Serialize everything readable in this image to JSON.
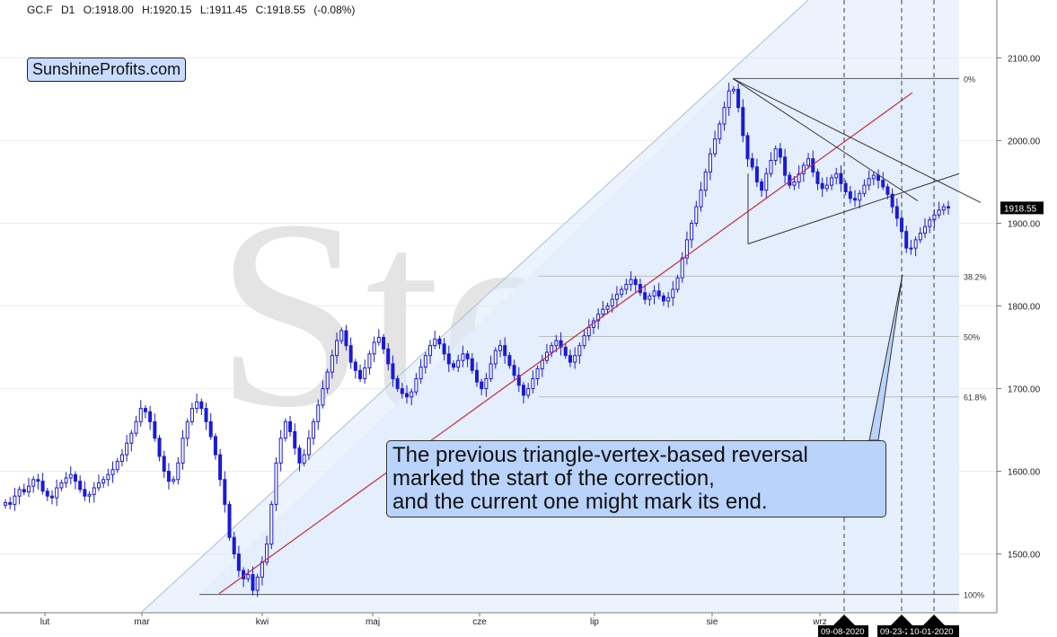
{
  "header": {
    "symbol": "GC.F",
    "interval": "D1",
    "open": "O:1918.00",
    "high": "H:1920.15",
    "low": "L:1911.45",
    "close": "C:1918.55",
    "change": "(-0.08%)"
  },
  "watermark": "Stooq",
  "logo": "SunshineProfits.com",
  "annotation": {
    "lines": [
      "The previous triangle-vertex-based reversal",
      "marked the start of the correction,",
      "and the current one might mark its end."
    ]
  },
  "chart_data": {
    "type": "candlestick",
    "ylim": [
      1430,
      2170
    ],
    "yticks": [
      {
        "value": 2100,
        "label": "2100.00"
      },
      {
        "value": 2000,
        "label": "2000.00"
      },
      {
        "value": 1900,
        "label": "1900.00"
      },
      {
        "value": 1800,
        "label": "1800.00"
      },
      {
        "value": 1700,
        "label": "1700.00"
      },
      {
        "value": 1600,
        "label": "1600.00"
      },
      {
        "value": 1500,
        "label": "1500.00"
      }
    ],
    "xticks": [
      "lut",
      "mar",
      "kwi",
      "maj",
      "cze",
      "lip",
      "sie",
      "wrz"
    ],
    "last_price": {
      "value": 1918.55,
      "label": "1918.55"
    },
    "fib_levels": [
      {
        "label": "0%",
        "value": 2075
      },
      {
        "label": "38.2%",
        "value": 1836
      },
      {
        "label": "50%",
        "value": 1763
      },
      {
        "label": "61.8%",
        "value": 1690
      },
      {
        "label": "100%",
        "value": 1451
      }
    ],
    "date_markers": [
      "09-08-2020",
      "09-23-2",
      "10-01-2020"
    ],
    "series": {
      "close": [
        1562,
        1560,
        1570,
        1578,
        1575,
        1582,
        1590,
        1588,
        1576,
        1570,
        1568,
        1580,
        1586,
        1592,
        1596,
        1588,
        1578,
        1570,
        1572,
        1580,
        1586,
        1590,
        1596,
        1602,
        1612,
        1620,
        1634,
        1646,
        1660,
        1676,
        1672,
        1660,
        1640,
        1618,
        1600,
        1588,
        1590,
        1610,
        1640,
        1660,
        1676,
        1684,
        1676,
        1660,
        1642,
        1620,
        1590,
        1560,
        1520,
        1500,
        1480,
        1470,
        1475,
        1456,
        1472,
        1490,
        1512,
        1560,
        1610,
        1640,
        1660,
        1648,
        1628,
        1610,
        1620,
        1640,
        1660,
        1680,
        1700,
        1720,
        1740,
        1758,
        1770,
        1752,
        1732,
        1722,
        1712,
        1725,
        1742,
        1756,
        1762,
        1748,
        1730,
        1712,
        1700,
        1694,
        1690,
        1696,
        1712,
        1726,
        1740,
        1752,
        1760,
        1754,
        1742,
        1730,
        1726,
        1734,
        1742,
        1736,
        1722,
        1708,
        1700,
        1712,
        1730,
        1746,
        1752,
        1740,
        1728,
        1716,
        1704,
        1692,
        1700,
        1712,
        1724,
        1734,
        1744,
        1752,
        1758,
        1750,
        1740,
        1732,
        1740,
        1752,
        1764,
        1774,
        1782,
        1790,
        1796,
        1800,
        1808,
        1814,
        1820,
        1826,
        1832,
        1826,
        1816,
        1808,
        1812,
        1818,
        1812,
        1806,
        1810,
        1820,
        1834,
        1858,
        1880,
        1900,
        1920,
        1940,
        1962,
        1984,
        2002,
        2020,
        2040,
        2060,
        2062,
        2040,
        2006,
        1978,
        1968,
        1950,
        1940,
        1960,
        1976,
        1990,
        1980,
        1958,
        1946,
        1950,
        1960,
        1970,
        1978,
        1962,
        1948,
        1942,
        1946,
        1955,
        1960,
        1948,
        1938,
        1930,
        1928,
        1936,
        1946,
        1954,
        1958,
        1952,
        1944,
        1935,
        1920,
        1906,
        1890,
        1870,
        1870,
        1880,
        1888,
        1896,
        1904,
        1910,
        1916,
        1920,
        1918.55
      ]
    }
  }
}
